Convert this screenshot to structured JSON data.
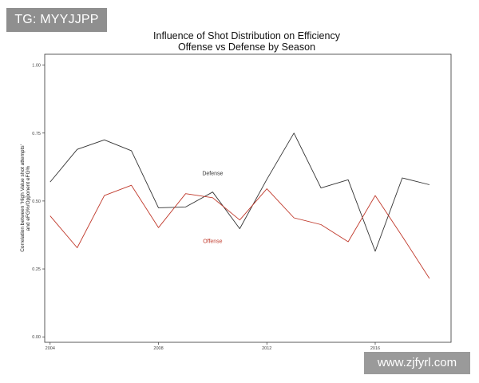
{
  "watermarks": {
    "top_left": "TG: MYYJJPP",
    "bottom_right": "www.zjfyrl.com"
  },
  "chart_data": {
    "type": "line",
    "title": "Influence of Shot Distribution on Efficiency",
    "subtitle": "Offense vs Defense by Season",
    "xlabel": "",
    "ylabel_lines": [
      "Correlation between 'High Value shot attempts'",
      "and eFG%/Opponent eFG%"
    ],
    "x": [
      2004,
      2005,
      2006,
      2007,
      2008,
      2009,
      2010,
      2011,
      2012,
      2013,
      2014,
      2015,
      2016,
      2017,
      2018
    ],
    "xlim": [
      2003.8,
      2018.8
    ],
    "ylim": [
      -0.02,
      1.04
    ],
    "x_ticks": [
      2004,
      2008,
      2012,
      2016
    ],
    "x_tick_labels": [
      "2004",
      "2008",
      "2012",
      "2016"
    ],
    "y_ticks": [
      0.0,
      0.25,
      0.5,
      0.75,
      1.0
    ],
    "y_tick_labels": [
      "0.00",
      "0.25",
      "0.50",
      "0.75",
      "1.00"
    ],
    "grid": false,
    "series": [
      {
        "name": "Defense",
        "color": "#333333",
        "label_at": [
          2010,
          0.595
        ],
        "values": [
          0.57,
          0.69,
          0.725,
          0.685,
          0.475,
          0.478,
          0.533,
          0.398,
          0.58,
          0.75,
          0.548,
          0.578,
          0.315,
          0.585,
          0.56
        ]
      },
      {
        "name": "Offense",
        "color": "#c0392b",
        "label_at": [
          2010,
          0.345
        ],
        "values": [
          0.445,
          0.328,
          0.52,
          0.558,
          0.402,
          0.527,
          0.512,
          0.43,
          0.545,
          0.438,
          0.413,
          0.35,
          0.52,
          0.37,
          0.215
        ]
      }
    ]
  }
}
